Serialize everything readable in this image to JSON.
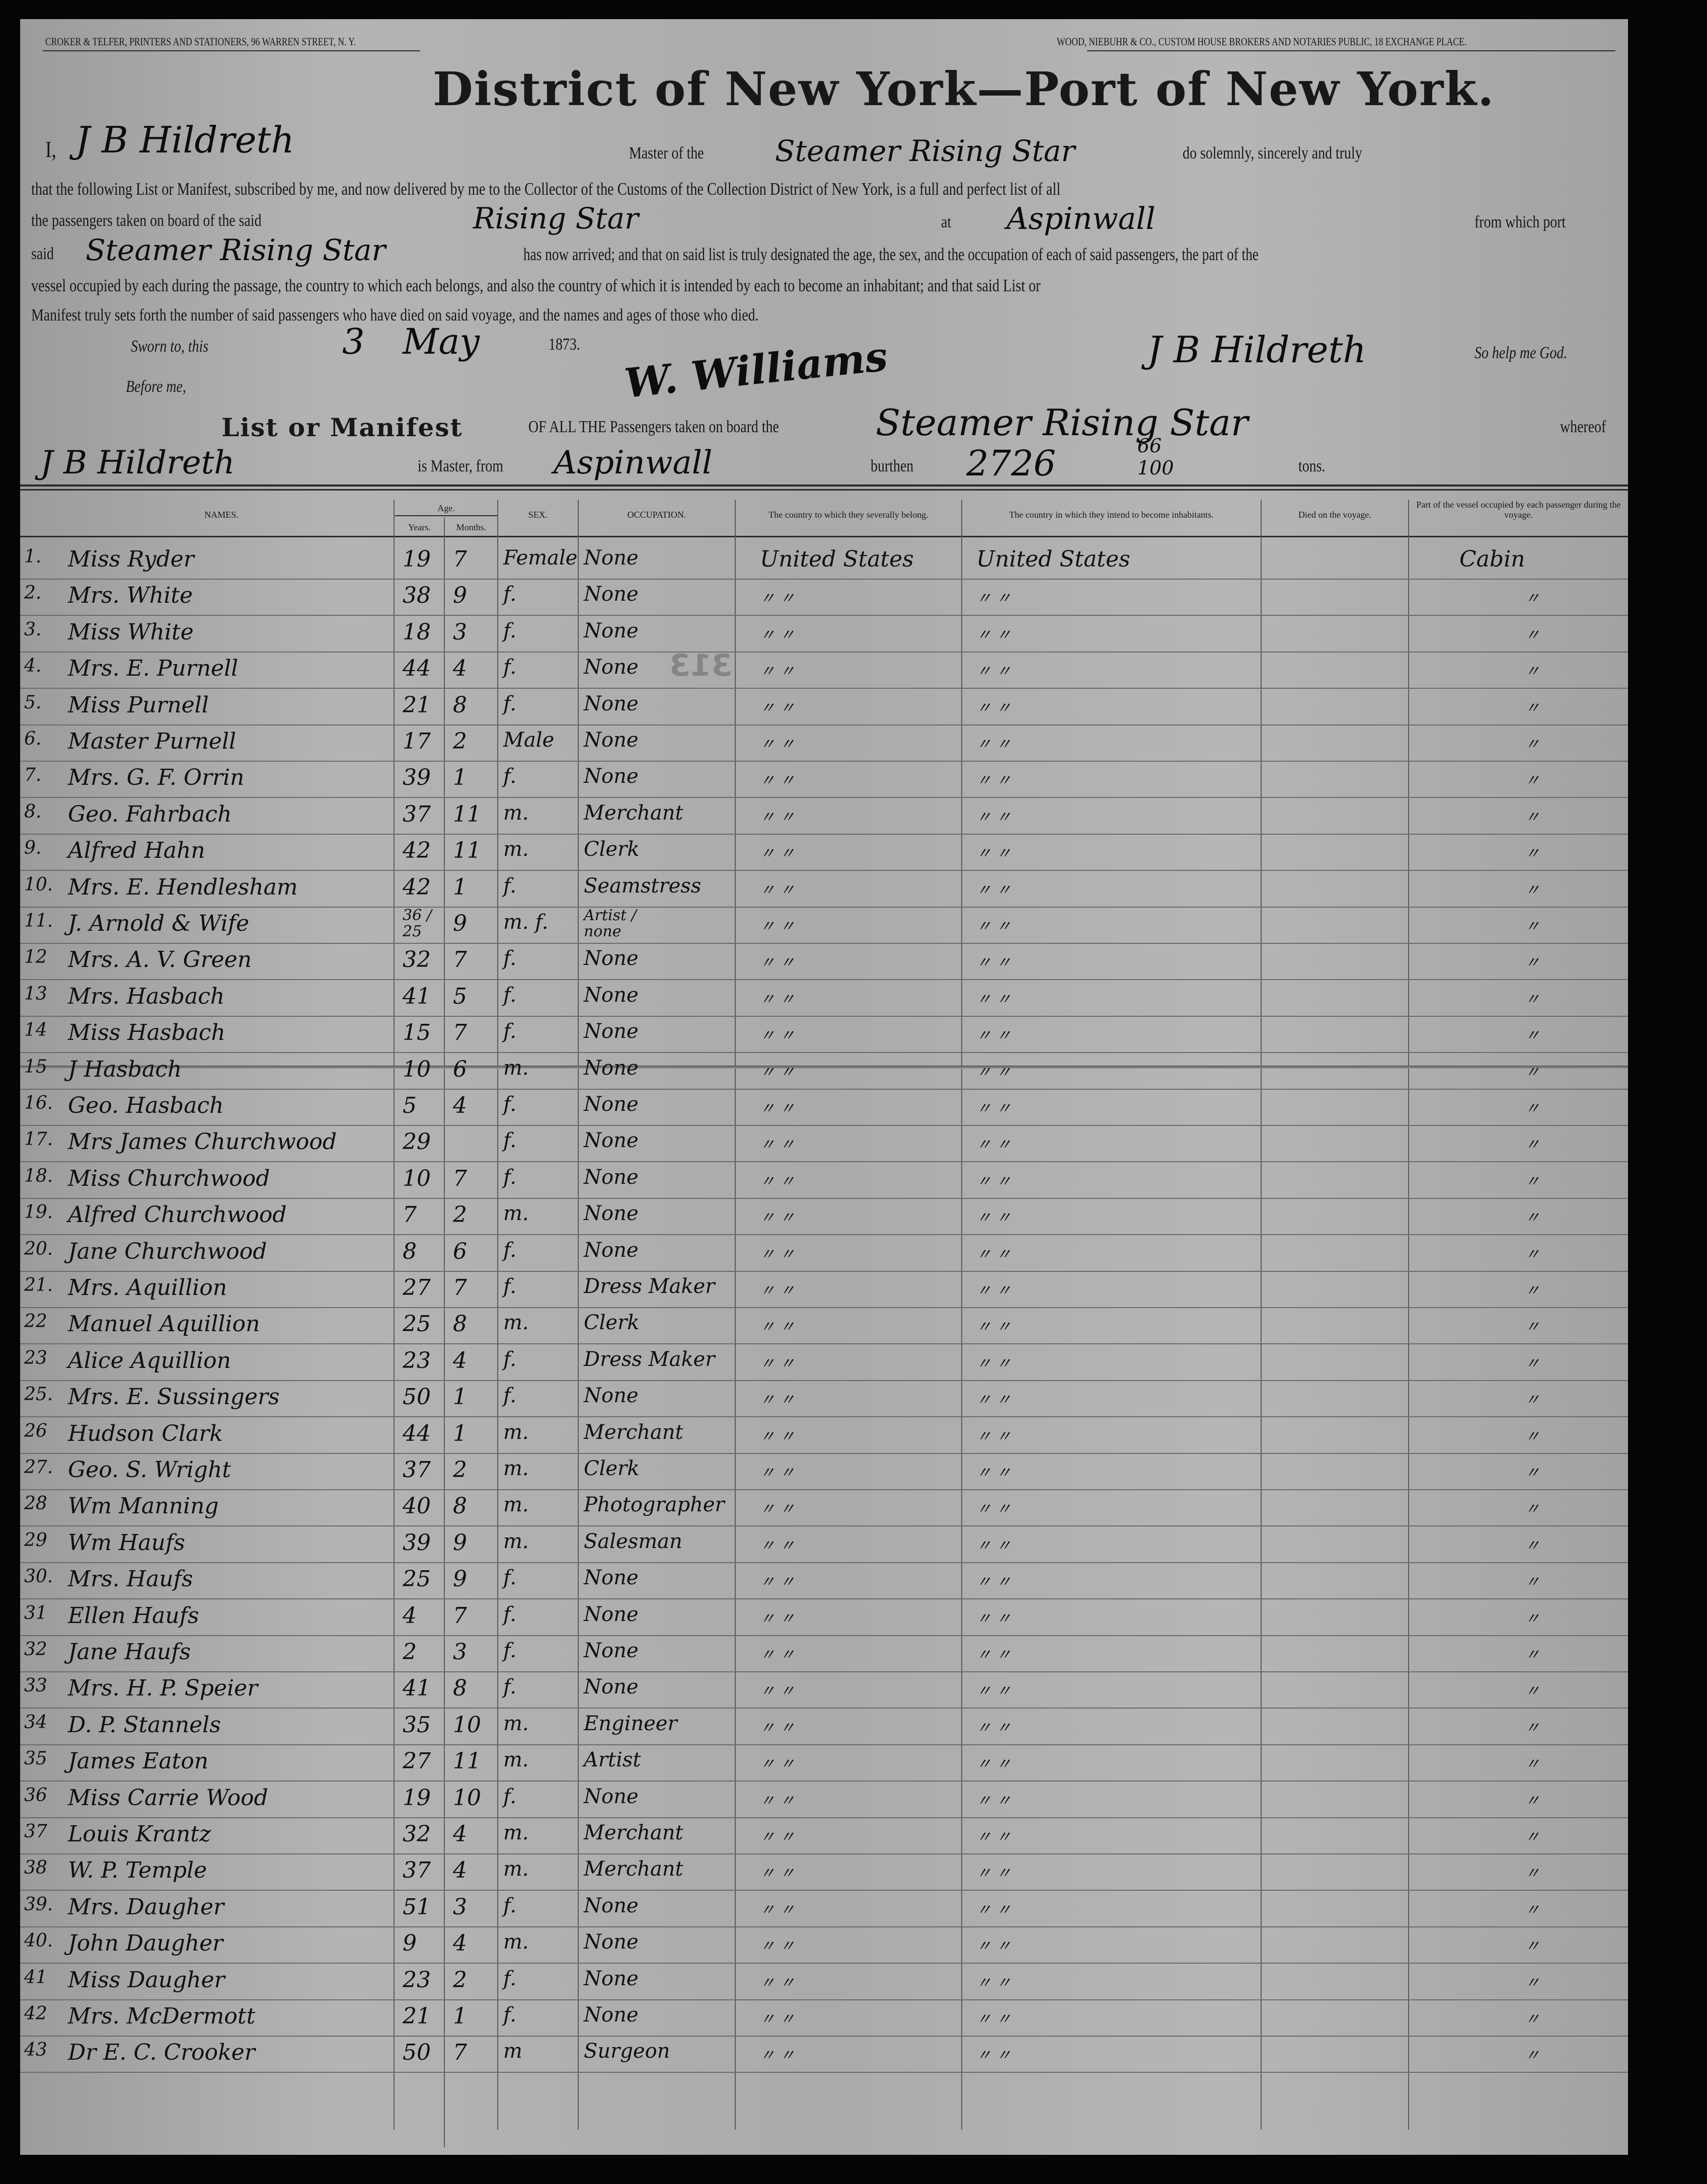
{
  "header": {
    "printer": "CROKER & TELFER, Printers and Stationers, 96 Warren Street, N. Y.",
    "broker": "WOOD, NIEBUHR & CO., Custom House Brokers and Notaries Public, 18 Exchange Place.",
    "title": "District of New York—Port of New York."
  },
  "oath": {
    "i": "I,",
    "master_name": "J B Hildreth",
    "master_of_the": "Master of the",
    "vessel": "Steamer Rising Star",
    "solemnly": "do solemnly, sincerely and truly",
    "line2": "that the following List or Manifest, subscribed by me, and now delivered by me to the Collector of the Customs of the Collection District of New York, is a full and perfect list of all",
    "line3a": "the passengers taken on board of the said",
    "vessel_short": "Rising Star",
    "at": "at",
    "port": "Aspinwall",
    "from_which_port": "from which port",
    "said": "said",
    "vessel_again": "Steamer Rising Star",
    "line4": "has now arrived; and that on said list is truly designated the age, the sex, and the occupation of each of said passengers, the part of the",
    "line5": "vessel occupied by each during the passage, the country to which each belongs, and also the country of which it is intended by each to become an inhabitant; and that said List or",
    "line6": "Manifest truly sets forth the number of said passengers who have died on said voyage, and the names and ages of those who died.",
    "sworn": "Sworn to, this",
    "day": "3",
    "month": "May",
    "year": "1873.",
    "before": "Before me,",
    "officer_signature": "W. Williams",
    "master_signature": "J B Hildreth",
    "so_help": "So help me God."
  },
  "manifest": {
    "list_or_manifest": "List or Manifest",
    "of_all": "OF ALL THE Passengers taken on board the",
    "vessel": "Steamer Rising Star",
    "whereof": "whereof",
    "master": "J B Hildreth",
    "is_master_from": "is Master, from",
    "from_port": "Aspinwall",
    "burthen": "burthen",
    "tonnage": "2726",
    "tonnage_frac_num": "66",
    "tonnage_frac_den": "100",
    "tons": "tons."
  },
  "columns": {
    "names": "NAMES.",
    "age": "Age.",
    "years": "Years.",
    "months": "Months.",
    "sex": "SEX.",
    "occupation": "OCCUPATION.",
    "country_belong": "The country to which they severally belong.",
    "country_inhabit": "The country in which they intend to become inhabitants.",
    "died": "Died on the voyage.",
    "part_vessel": "Part of the vessel occupied by each passenger during the voyage."
  },
  "stamp": "313",
  "rows": [
    {
      "no": "1.",
      "name": "Miss Ryder",
      "years": "19",
      "months": "7",
      "sex": "Female",
      "occupation": "None",
      "belong": "United States",
      "inhabit": "United States",
      "part": "Cabin"
    },
    {
      "no": "2.",
      "name": "Mrs. White",
      "years": "38",
      "months": "9",
      "sex": "f.",
      "occupation": "None",
      "belong": "〃   〃",
      "inhabit": "〃   〃",
      "part": "〃"
    },
    {
      "no": "3.",
      "name": "Miss White",
      "years": "18",
      "months": "3",
      "sex": "f.",
      "occupation": "None",
      "belong": "〃   〃",
      "inhabit": "〃   〃",
      "part": "〃"
    },
    {
      "no": "4.",
      "name": "Mrs. E. Purnell",
      "years": "44",
      "months": "4",
      "sex": "f.",
      "occupation": "None",
      "belong": "〃   〃",
      "inhabit": "〃   〃",
      "part": "〃"
    },
    {
      "no": "5.",
      "name": "Miss Purnell",
      "years": "21",
      "months": "8",
      "sex": "f.",
      "occupation": "None",
      "belong": "〃   〃",
      "inhabit": "〃   〃",
      "part": "〃"
    },
    {
      "no": "6.",
      "name": "Master Purnell",
      "years": "17",
      "months": "2",
      "sex": "Male",
      "occupation": "None",
      "belong": "〃   〃",
      "inhabit": "〃   〃",
      "part": "〃"
    },
    {
      "no": "7.",
      "name": "Mrs. G. F. Orrin",
      "years": "39",
      "months": "1",
      "sex": "f.",
      "occupation": "None",
      "belong": "〃   〃",
      "inhabit": "〃   〃",
      "part": "〃"
    },
    {
      "no": "8.",
      "name": "Geo. Fahrbach",
      "years": "37",
      "months": "11",
      "sex": "m.",
      "occupation": "Merchant",
      "belong": "〃   〃",
      "inhabit": "〃   〃",
      "part": "〃"
    },
    {
      "no": "9.",
      "name": "Alfred Hahn",
      "years": "42",
      "months": "11",
      "sex": "m.",
      "occupation": "Clerk",
      "belong": "〃   〃",
      "inhabit": "〃   〃",
      "part": "〃"
    },
    {
      "no": "10.",
      "name": "Mrs. E. Hendlesham",
      "years": "42",
      "months": "1",
      "sex": "f.",
      "occupation": "Seamstress",
      "belong": "〃   〃",
      "inhabit": "〃   〃",
      "part": "〃"
    },
    {
      "no": "11.",
      "name": "J. Arnold & Wife",
      "years": "36 / 25",
      "months": "9",
      "sex": "m. f.",
      "occupation": "Artist / none",
      "belong": "〃   〃",
      "inhabit": "〃   〃",
      "part": "〃"
    },
    {
      "no": "12",
      "name": "Mrs. A. V. Green",
      "years": "32",
      "months": "7",
      "sex": "f.",
      "occupation": "None",
      "belong": "〃   〃",
      "inhabit": "〃   〃",
      "part": "〃"
    },
    {
      "no": "13",
      "name": "Mrs. Hasbach",
      "years": "41",
      "months": "5",
      "sex": "f.",
      "occupation": "None",
      "belong": "〃   〃",
      "inhabit": "〃   〃",
      "part": "〃"
    },
    {
      "no": "14",
      "name": "Miss Hasbach",
      "years": "15",
      "months": "7",
      "sex": "f.",
      "occupation": "None",
      "belong": "〃   〃",
      "inhabit": "〃   〃",
      "part": "〃"
    },
    {
      "no": "15",
      "name": "J Hasbach",
      "years": "10",
      "months": "6",
      "sex": "m.",
      "occupation": "None",
      "belong": "〃   〃",
      "inhabit": "〃   〃",
      "part": "〃"
    },
    {
      "no": "16.",
      "name": "Geo. Hasbach",
      "years": "5",
      "months": "4",
      "sex": "f.",
      "occupation": "None",
      "belong": "〃   〃",
      "inhabit": "〃   〃",
      "part": "〃"
    },
    {
      "no": "17.",
      "name": "Mrs James Churchwood",
      "years": "29",
      "months": "",
      "sex": "f.",
      "occupation": "None",
      "belong": "〃   〃",
      "inhabit": "〃   〃",
      "part": "〃"
    },
    {
      "no": "18.",
      "name": "Miss Churchwood",
      "years": "10",
      "months": "7",
      "sex": "f.",
      "occupation": "None",
      "belong": "〃   〃",
      "inhabit": "〃   〃",
      "part": "〃"
    },
    {
      "no": "19.",
      "name": "Alfred Churchwood",
      "years": "7",
      "months": "2",
      "sex": "m.",
      "occupation": "None",
      "belong": "〃   〃",
      "inhabit": "〃   〃",
      "part": "〃"
    },
    {
      "no": "20.",
      "name": "Jane Churchwood",
      "years": "8",
      "months": "6",
      "sex": "f.",
      "occupation": "None",
      "belong": "〃   〃",
      "inhabit": "〃   〃",
      "part": "〃"
    },
    {
      "no": "21.",
      "name": "Mrs. Aquillion",
      "years": "27",
      "months": "7",
      "sex": "f.",
      "occupation": "Dress Maker",
      "belong": "〃   〃",
      "inhabit": "〃   〃",
      "part": "〃"
    },
    {
      "no": "22",
      "name": "Manuel Aquillion",
      "years": "25",
      "months": "8",
      "sex": "m.",
      "occupation": "Clerk",
      "belong": "〃   〃",
      "inhabit": "〃   〃",
      "part": "〃"
    },
    {
      "no": "23",
      "name": "Alice Aquillion",
      "years": "23",
      "months": "4",
      "sex": "f.",
      "occupation": "Dress Maker",
      "belong": "〃   〃",
      "inhabit": "〃   〃",
      "part": "〃"
    },
    {
      "no": "25.",
      "name": "Mrs. E. Sussingers",
      "years": "50",
      "months": "1",
      "sex": "f.",
      "occupation": "None",
      "belong": "〃   〃",
      "inhabit": "〃   〃",
      "part": "〃"
    },
    {
      "no": "26",
      "name": "Hudson Clark",
      "years": "44",
      "months": "1",
      "sex": "m.",
      "occupation": "Merchant",
      "belong": "〃   〃",
      "inhabit": "〃   〃",
      "part": "〃"
    },
    {
      "no": "27.",
      "name": "Geo. S. Wright",
      "years": "37",
      "months": "2",
      "sex": "m.",
      "occupation": "Clerk",
      "belong": "〃   〃",
      "inhabit": "〃   〃",
      "part": "〃"
    },
    {
      "no": "28",
      "name": "Wm Manning",
      "years": "40",
      "months": "8",
      "sex": "m.",
      "occupation": "Photographer",
      "belong": "〃   〃",
      "inhabit": "〃   〃",
      "part": "〃"
    },
    {
      "no": "29",
      "name": "Wm Haufs",
      "years": "39",
      "months": "9",
      "sex": "m.",
      "occupation": "Salesman",
      "belong": "〃   〃",
      "inhabit": "〃   〃",
      "part": "〃"
    },
    {
      "no": "30.",
      "name": "Mrs. Haufs",
      "years": "25",
      "months": "9",
      "sex": "f.",
      "occupation": "None",
      "belong": "〃   〃",
      "inhabit": "〃   〃",
      "part": "〃"
    },
    {
      "no": "31",
      "name": "Ellen Haufs",
      "years": "4",
      "months": "7",
      "sex": "f.",
      "occupation": "None",
      "belong": "〃   〃",
      "inhabit": "〃   〃",
      "part": "〃"
    },
    {
      "no": "32",
      "name": "Jane Haufs",
      "years": "2",
      "months": "3",
      "sex": "f.",
      "occupation": "None",
      "belong": "〃   〃",
      "inhabit": "〃   〃",
      "part": "〃"
    },
    {
      "no": "33",
      "name": "Mrs. H. P. Speier",
      "years": "41",
      "months": "8",
      "sex": "f.",
      "occupation": "None",
      "belong": "〃   〃",
      "inhabit": "〃   〃",
      "part": "〃"
    },
    {
      "no": "34",
      "name": "D. P. Stannels",
      "years": "35",
      "months": "10",
      "sex": "m.",
      "occupation": "Engineer",
      "belong": "〃   〃",
      "inhabit": "〃   〃",
      "part": "〃"
    },
    {
      "no": "35",
      "name": "James Eaton",
      "years": "27",
      "months": "11",
      "sex": "m.",
      "occupation": "Artist",
      "belong": "〃   〃",
      "inhabit": "〃   〃",
      "part": "〃"
    },
    {
      "no": "36",
      "name": "Miss Carrie Wood",
      "years": "19",
      "months": "10",
      "sex": "f.",
      "occupation": "None",
      "belong": "〃   〃",
      "inhabit": "〃   〃",
      "part": "〃"
    },
    {
      "no": "37",
      "name": "Louis Krantz",
      "years": "32",
      "months": "4",
      "sex": "m.",
      "occupation": "Merchant",
      "belong": "〃   〃",
      "inhabit": "〃   〃",
      "part": "〃"
    },
    {
      "no": "38",
      "name": "W. P. Temple",
      "years": "37",
      "months": "4",
      "sex": "m.",
      "occupation": "Merchant",
      "belong": "〃   〃",
      "inhabit": "〃   〃",
      "part": "〃"
    },
    {
      "no": "39.",
      "name": "Mrs. Daugher",
      "years": "51",
      "months": "3",
      "sex": "f.",
      "occupation": "None",
      "belong": "〃   〃",
      "inhabit": "〃   〃",
      "part": "〃"
    },
    {
      "no": "40.",
      "name": "John Daugher",
      "years": "9",
      "months": "4",
      "sex": "m.",
      "occupation": "None",
      "belong": "〃   〃",
      "inhabit": "〃   〃",
      "part": "〃"
    },
    {
      "no": "41",
      "name": "Miss Daugher",
      "years": "23",
      "months": "2",
      "sex": "f.",
      "occupation": "None",
      "belong": "〃   〃",
      "inhabit": "〃   〃",
      "part": "〃"
    },
    {
      "no": "42",
      "name": "Mrs. McDermott",
      "years": "21",
      "months": "1",
      "sex": "f.",
      "occupation": "None",
      "belong": "〃   〃",
      "inhabit": "〃   〃",
      "part": "〃"
    },
    {
      "no": "43",
      "name": "Dr E. C. Crooker",
      "years": "50",
      "months": "7",
      "sex": "m",
      "occupation": "Surgeon",
      "belong": "〃   〃",
      "inhabit": "〃   〃",
      "part": "〃"
    }
  ]
}
